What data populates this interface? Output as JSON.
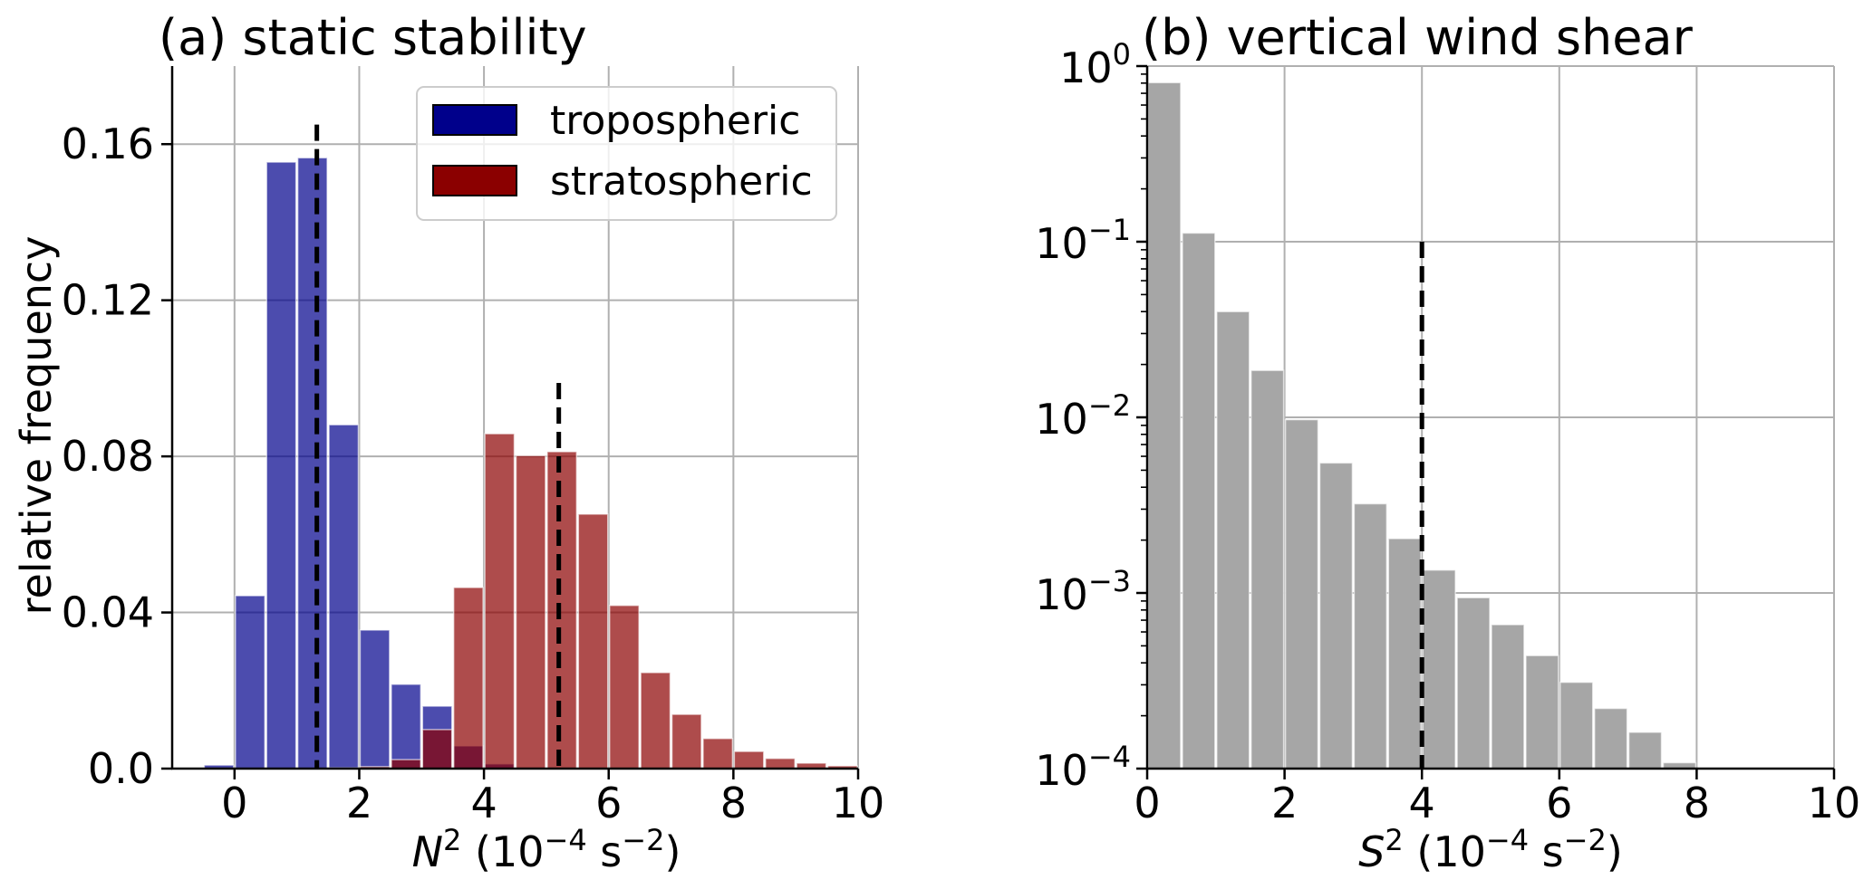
{
  "chart_data": [
    {
      "type": "bar",
      "title": "(a) static stability",
      "xlabel": {
        "base": "N",
        "base_sup": "2",
        "unit_open": " (10",
        "unit_exp": "−4",
        "unit_mid": " s",
        "unit_exp2": "−2",
        "unit_close": ")"
      },
      "ylabel": "relative frequency",
      "xlim": [
        -1,
        10
      ],
      "ylim": [
        0,
        0.18
      ],
      "yscale": "linear",
      "grid": true,
      "xticks": [
        0,
        2,
        4,
        6,
        8,
        10
      ],
      "xtick_labels": [
        "0",
        "2",
        "4",
        "6",
        "8",
        "10"
      ],
      "yticks": [
        0.0,
        0.04,
        0.08,
        0.12,
        0.16
      ],
      "ytick_labels": [
        "0.0",
        "0.04",
        "0.08",
        "0.12",
        "0.16"
      ],
      "bin_width": 0.5,
      "legend": {
        "placement": "top-right",
        "entries": [
          "tropospheric",
          "stratospheric"
        ]
      },
      "series": [
        {
          "name": "tropospheric",
          "color": "#00008b",
          "bin_left_edges": [
            -0.5,
            0.0,
            0.5,
            1.0,
            1.5,
            2.0,
            2.5,
            3.0,
            3.5,
            4.0,
            4.5
          ],
          "values": [
            0.0009,
            0.0443,
            0.1554,
            0.1565,
            0.0881,
            0.0355,
            0.0216,
            0.016,
            0.0058,
            0.0012,
            0.0003
          ]
        },
        {
          "name": "stratospheric",
          "color": "#8b0000",
          "bin_left_edges": [
            1.5,
            2.0,
            2.5,
            3.0,
            3.5,
            4.0,
            4.5,
            5.0,
            5.5,
            6.0,
            6.5,
            7.0,
            7.5,
            8.0,
            8.5,
            9.0,
            9.5
          ],
          "values": [
            0.0002,
            0.0005,
            0.0023,
            0.01,
            0.0464,
            0.0858,
            0.0802,
            0.0812,
            0.0652,
            0.0418,
            0.0246,
            0.0139,
            0.0077,
            0.0044,
            0.0026,
            0.0014,
            0.0007
          ]
        }
      ],
      "reference_lines": [
        {
          "series": "tropospheric",
          "x": 1.32,
          "y_top": 0.165,
          "style": "dashed"
        },
        {
          "series": "stratospheric",
          "x": 5.2,
          "y_top": 0.0988,
          "style": "dashed"
        }
      ]
    },
    {
      "type": "bar",
      "title": "(b) vertical wind shear",
      "xlabel": {
        "base": "S",
        "base_sup": "2",
        "unit_open": " (10",
        "unit_exp": "−4",
        "unit_mid": " s",
        "unit_exp2": "−2",
        "unit_close": ")"
      },
      "ylabel": "",
      "xlim": [
        0,
        10
      ],
      "ylim": [
        0.0001,
        1
      ],
      "yscale": "log",
      "grid": true,
      "xticks": [
        0,
        2,
        4,
        6,
        8,
        10
      ],
      "xtick_labels": [
        "0",
        "2",
        "4",
        "6",
        "8",
        "10"
      ],
      "yticks": [
        1,
        0.1,
        0.01,
        0.001,
        0.0001
      ],
      "ytick_labels": [
        {
          "base": "10",
          "exp": "0"
        },
        {
          "base": "10",
          "exp": "−1"
        },
        {
          "base": "10",
          "exp": "−2"
        },
        {
          "base": "10",
          "exp": "−3"
        },
        {
          "base": "10",
          "exp": "−4"
        }
      ],
      "bin_width": 0.5,
      "series": [
        {
          "name": "vertical wind shear",
          "color": "#a6a6a6",
          "bin_left_edges": [
            0.0,
            0.5,
            1.0,
            1.5,
            2.0,
            2.5,
            3.0,
            3.5,
            4.0,
            4.5,
            5.0,
            5.5,
            6.0,
            6.5,
            7.0,
            7.5
          ],
          "values": [
            0.805,
            0.112,
            0.04,
            0.0185,
            0.0097,
            0.0055,
            0.00322,
            0.00204,
            0.00135,
            0.00094,
            0.00066,
            0.00044,
            0.00031,
            0.00022,
            0.000161,
            0.000108
          ]
        }
      ],
      "reference_lines": [
        {
          "x": 4.0,
          "y_top": 0.1,
          "style": "dashed"
        }
      ]
    }
  ]
}
